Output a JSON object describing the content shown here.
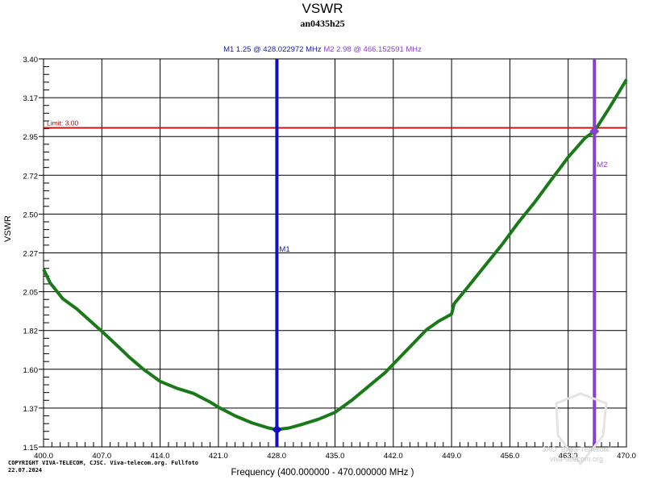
{
  "header": {
    "title": "VSWR",
    "subtitle": "an0435h25",
    "marker1_text": "M1  1.25 @ 428.022972 MHz",
    "marker2_text": "M2  2.98 @ 466.152591 MHz"
  },
  "footer": {
    "copyright_line1": "COPYRIGHT VIVA-TELECOM, CJSC. Viva-telecom.org. Fullfoto",
    "copyright_line2": "22.07.2024",
    "watermark_line1": "ЗАО \"Вива-Телеком\"",
    "watermark_line2": "viva-telecom.org"
  },
  "colors": {
    "trace": "#1a7a1a",
    "limit": "#c01818",
    "m1": "#1010c0",
    "m2": "#8a3fd0",
    "grid": "#000000"
  },
  "chart_data": {
    "type": "line",
    "title": "VSWR",
    "subtitle": "an0435h25",
    "xlabel": "Frequency (400.000000 - 470.000000 MHz )",
    "ylabel": "VSWR",
    "xlim": [
      400,
      470
    ],
    "ylim": [
      1.15,
      3.4
    ],
    "x_ticks": [
      "400.0",
      "407.0",
      "414.0",
      "421.0",
      "428.0",
      "435.0",
      "442.0",
      "449.0",
      "456.0",
      "463.0",
      "470.0"
    ],
    "y_ticks": [
      "3.40",
      "3.17",
      "2.95",
      "2.72",
      "2.50",
      "2.27",
      "2.05",
      "1.82",
      "1.60",
      "1.37",
      "1.15"
    ],
    "grid": true,
    "limit_line": {
      "label": "Limit: 3.00",
      "value": 3.0
    },
    "markers": [
      {
        "name": "M1",
        "freq_mhz": 428.022972,
        "vswr": 1.25
      },
      {
        "name": "M2",
        "freq_mhz": 466.152591,
        "vswr": 2.98
      }
    ],
    "series": [
      {
        "name": "VSWR",
        "x": [
          400.0,
          400.8,
          402.3,
          404.0,
          407.0,
          409.0,
          410.3,
          412.0,
          414.0,
          416.0,
          418.0,
          420.0,
          421.0,
          423.0,
          425.0,
          427.0,
          428.0,
          429.5,
          431.0,
          433.0,
          435.0,
          437.0,
          439.0,
          441.0,
          442.0,
          444.0,
          446.0,
          447.5,
          449.0,
          449.3,
          451.0,
          453.0,
          455.0,
          457.0,
          459.0,
          461.0,
          463.0,
          465.0,
          466.15,
          468.0,
          470.0
        ],
        "values": [
          2.18,
          2.1,
          2.01,
          1.95,
          1.82,
          1.73,
          1.67,
          1.6,
          1.53,
          1.49,
          1.46,
          1.41,
          1.38,
          1.33,
          1.29,
          1.26,
          1.25,
          1.26,
          1.28,
          1.31,
          1.35,
          1.42,
          1.5,
          1.58,
          1.63,
          1.73,
          1.83,
          1.88,
          1.92,
          1.98,
          2.08,
          2.2,
          2.32,
          2.45,
          2.57,
          2.7,
          2.83,
          2.94,
          2.98,
          3.12,
          3.28
        ]
      }
    ]
  }
}
